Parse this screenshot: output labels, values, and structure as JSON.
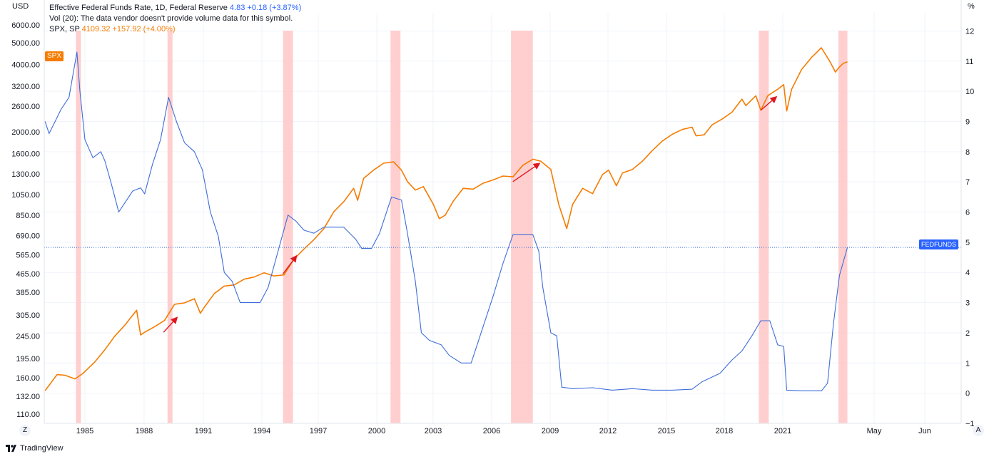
{
  "legend": {
    "line1_name": "Effective Federal Funds Rate, 1D, Federal Reserve",
    "line1_value": "4.83",
    "line1_change": "+0.18 (+3.87%)",
    "line2": "Vol (20): The data vendor doesn't provide volume data for this symbol.",
    "line3_name": "SPX, SP",
    "line3_value": "4109.32",
    "line3_change": "+157.92 (+4.00%)"
  },
  "left_unit": "USD",
  "right_unit": "%",
  "spx_badge": "SPX",
  "fedfunds_badge": "FEDFUNDS",
  "scale_mode_left": "Z",
  "scale_mode_right": "A",
  "brand": "TradingView",
  "colors": {
    "spx": "#f57c00",
    "fedfunds": "#3d6cd9",
    "recession": "#ffc7c7",
    "arrow": "#e0161e"
  },
  "chart_data": {
    "type": "line",
    "x_tick_labels": [
      "1985",
      "1988",
      "1991",
      "1994",
      "1997",
      "2000",
      "2003",
      "2006",
      "2009",
      "2012",
      "2015",
      "2018",
      "2021",
      "May",
      "Jun"
    ],
    "left_axis": {
      "scale": "log",
      "tick_labels": [
        "6000.00",
        "5000.00",
        "4000.00",
        "3200.00",
        "2600.00",
        "2000.00",
        "1600.00",
        "1300.00",
        "1050.00",
        "850.00",
        "690.00",
        "565.00",
        "465.00",
        "385.00",
        "305.00",
        "245.00",
        "195.00",
        "160.00",
        "132.00",
        "110.00"
      ],
      "range": [
        100,
        6800
      ]
    },
    "right_axis": {
      "scale": "linear",
      "tick_labels": [
        "12",
        "11",
        "10",
        "9",
        "8",
        "7",
        "6",
        "5",
        "4",
        "3",
        "2",
        "1",
        "0",
        "−1"
      ],
      "range": [
        -1,
        12.6
      ]
    },
    "series": [
      {
        "name": "SPX",
        "axis": "left",
        "points": [
          [
            1983.0,
            140
          ],
          [
            1983.3,
            152
          ],
          [
            1983.6,
            165
          ],
          [
            1984.0,
            164
          ],
          [
            1984.5,
            158
          ],
          [
            1984.9,
            167
          ],
          [
            1985.5,
            188
          ],
          [
            1986.0,
            213
          ],
          [
            1986.5,
            245
          ],
          [
            1987.0,
            274
          ],
          [
            1987.6,
            320
          ],
          [
            1987.8,
            248
          ],
          [
            1988.0,
            255
          ],
          [
            1988.5,
            270
          ],
          [
            1989.0,
            288
          ],
          [
            1989.5,
            340
          ],
          [
            1990.0,
            345
          ],
          [
            1990.5,
            360
          ],
          [
            1990.8,
            310
          ],
          [
            1991.0,
            330
          ],
          [
            1991.5,
            380
          ],
          [
            1992.0,
            410
          ],
          [
            1992.5,
            415
          ],
          [
            1993.0,
            440
          ],
          [
            1993.5,
            450
          ],
          [
            1994.0,
            470
          ],
          [
            1994.5,
            455
          ],
          [
            1995.0,
            460
          ],
          [
            1995.5,
            540
          ],
          [
            1996.0,
            600
          ],
          [
            1996.5,
            660
          ],
          [
            1997.0,
            740
          ],
          [
            1997.5,
            880
          ],
          [
            1998.0,
            975
          ],
          [
            1998.5,
            1120
          ],
          [
            1998.7,
            990
          ],
          [
            1999.0,
            1240
          ],
          [
            1999.5,
            1350
          ],
          [
            2000.0,
            1450
          ],
          [
            2000.5,
            1470
          ],
          [
            2000.9,
            1350
          ],
          [
            2001.2,
            1200
          ],
          [
            2001.6,
            1100
          ],
          [
            2002.0,
            1140
          ],
          [
            2002.5,
            950
          ],
          [
            2002.8,
            820
          ],
          [
            2003.1,
            850
          ],
          [
            2003.5,
            980
          ],
          [
            2004.0,
            1120
          ],
          [
            2004.5,
            1110
          ],
          [
            2005.0,
            1180
          ],
          [
            2005.5,
            1220
          ],
          [
            2006.0,
            1270
          ],
          [
            2006.5,
            1260
          ],
          [
            2007.0,
            1420
          ],
          [
            2007.5,
            1510
          ],
          [
            2007.9,
            1480
          ],
          [
            2008.4,
            1360
          ],
          [
            2008.8,
            950
          ],
          [
            2009.2,
            740
          ],
          [
            2009.5,
            950
          ],
          [
            2010.0,
            1120
          ],
          [
            2010.5,
            1060
          ],
          [
            2011.0,
            1290
          ],
          [
            2011.3,
            1350
          ],
          [
            2011.7,
            1150
          ],
          [
            2012.0,
            1310
          ],
          [
            2012.5,
            1360
          ],
          [
            2013.0,
            1480
          ],
          [
            2013.5,
            1650
          ],
          [
            2014.0,
            1820
          ],
          [
            2014.5,
            1950
          ],
          [
            2015.0,
            2050
          ],
          [
            2015.5,
            2100
          ],
          [
            2015.7,
            1920
          ],
          [
            2016.1,
            1940
          ],
          [
            2016.5,
            2150
          ],
          [
            2017.0,
            2280
          ],
          [
            2017.5,
            2450
          ],
          [
            2018.0,
            2800
          ],
          [
            2018.2,
            2620
          ],
          [
            2018.7,
            2900
          ],
          [
            2018.95,
            2500
          ],
          [
            2019.3,
            2900
          ],
          [
            2019.8,
            3100
          ],
          [
            2020.1,
            3250
          ],
          [
            2020.25,
            2480
          ],
          [
            2020.5,
            3100
          ],
          [
            2021.0,
            3800
          ],
          [
            2021.5,
            4300
          ],
          [
            2021.99,
            4750
          ],
          [
            2022.4,
            4150
          ],
          [
            2022.7,
            3700
          ],
          [
            2022.9,
            3900
          ],
          [
            2023.1,
            4050
          ],
          [
            2023.3,
            4109
          ]
        ]
      },
      {
        "name": "FEDFUNDS",
        "axis": "right",
        "points": [
          [
            1983.0,
            9.0
          ],
          [
            1983.2,
            8.6
          ],
          [
            1983.5,
            9.0
          ],
          [
            1983.8,
            9.4
          ],
          [
            1984.2,
            9.8
          ],
          [
            1984.6,
            11.3
          ],
          [
            1984.75,
            10.0
          ],
          [
            1985.0,
            8.4
          ],
          [
            1985.4,
            7.8
          ],
          [
            1985.8,
            8.0
          ],
          [
            1986.0,
            7.7
          ],
          [
            1986.3,
            7.0
          ],
          [
            1986.7,
            6.0
          ],
          [
            1987.0,
            6.3
          ],
          [
            1987.4,
            6.7
          ],
          [
            1987.8,
            6.8
          ],
          [
            1988.0,
            6.6
          ],
          [
            1988.4,
            7.6
          ],
          [
            1988.8,
            8.4
          ],
          [
            1989.2,
            9.8
          ],
          [
            1989.6,
            9.0
          ],
          [
            1990.0,
            8.3
          ],
          [
            1990.5,
            8.0
          ],
          [
            1990.9,
            7.4
          ],
          [
            1991.3,
            6.0
          ],
          [
            1991.7,
            5.2
          ],
          [
            1992.0,
            4.0
          ],
          [
            1992.4,
            3.7
          ],
          [
            1992.8,
            3.0
          ],
          [
            1993.3,
            3.0
          ],
          [
            1993.8,
            3.0
          ],
          [
            1994.2,
            3.5
          ],
          [
            1994.7,
            4.7
          ],
          [
            1995.2,
            5.9
          ],
          [
            1995.6,
            5.7
          ],
          [
            1996.0,
            5.4
          ],
          [
            1996.5,
            5.3
          ],
          [
            1997.0,
            5.5
          ],
          [
            1997.5,
            5.5
          ],
          [
            1998.0,
            5.5
          ],
          [
            1998.6,
            5.1
          ],
          [
            1998.9,
            4.8
          ],
          [
            1999.4,
            4.8
          ],
          [
            1999.8,
            5.3
          ],
          [
            2000.4,
            6.5
          ],
          [
            2000.9,
            6.4
          ],
          [
            2001.2,
            5.3
          ],
          [
            2001.6,
            3.7
          ],
          [
            2001.9,
            2.0
          ],
          [
            2002.3,
            1.75
          ],
          [
            2002.9,
            1.6
          ],
          [
            2003.3,
            1.25
          ],
          [
            2003.9,
            1.0
          ],
          [
            2004.4,
            1.0
          ],
          [
            2004.9,
            2.0
          ],
          [
            2005.5,
            3.2
          ],
          [
            2006.0,
            4.3
          ],
          [
            2006.5,
            5.25
          ],
          [
            2007.5,
            5.25
          ],
          [
            2007.8,
            4.7
          ],
          [
            2008.0,
            3.5
          ],
          [
            2008.4,
            2.0
          ],
          [
            2008.7,
            1.9
          ],
          [
            2008.95,
            0.2
          ],
          [
            2009.5,
            0.15
          ],
          [
            2010.5,
            0.18
          ],
          [
            2011.5,
            0.1
          ],
          [
            2012.5,
            0.15
          ],
          [
            2013.5,
            0.1
          ],
          [
            2014.5,
            0.1
          ],
          [
            2015.5,
            0.13
          ],
          [
            2016.0,
            0.38
          ],
          [
            2016.9,
            0.66
          ],
          [
            2017.5,
            1.1
          ],
          [
            2018.0,
            1.4
          ],
          [
            2018.5,
            1.9
          ],
          [
            2018.95,
            2.4
          ],
          [
            2019.4,
            2.4
          ],
          [
            2019.8,
            1.6
          ],
          [
            2020.1,
            1.55
          ],
          [
            2020.25,
            0.1
          ],
          [
            2021.0,
            0.08
          ],
          [
            2022.0,
            0.08
          ],
          [
            2022.3,
            0.33
          ],
          [
            2022.6,
            2.3
          ],
          [
            2022.9,
            3.9
          ],
          [
            2023.3,
            4.83
          ]
        ]
      }
    ],
    "recession_bands": [
      [
        1984.55,
        1984.8
      ],
      [
        1989.15,
        1989.4
      ],
      [
        1994.95,
        1995.45
      ],
      [
        2000.35,
        2000.85
      ],
      [
        2006.4,
        2007.5
      ],
      [
        2018.85,
        2019.35
      ],
      [
        2022.85,
        2023.3
      ]
    ],
    "annotation_arrows": [
      [
        [
          1988.95,
          255
        ],
        [
          1989.6,
          295
        ]
      ],
      [
        [
          1994.95,
          465
        ],
        [
          1995.6,
          555
        ]
      ],
      [
        [
          2006.5,
          1200
        ],
        [
          2007.8,
          1440
        ]
      ],
      [
        [
          2018.95,
          2500
        ],
        [
          2019.7,
          2850
        ]
      ]
    ],
    "last_value_line": {
      "axis": "right",
      "value": 4.83
    }
  }
}
